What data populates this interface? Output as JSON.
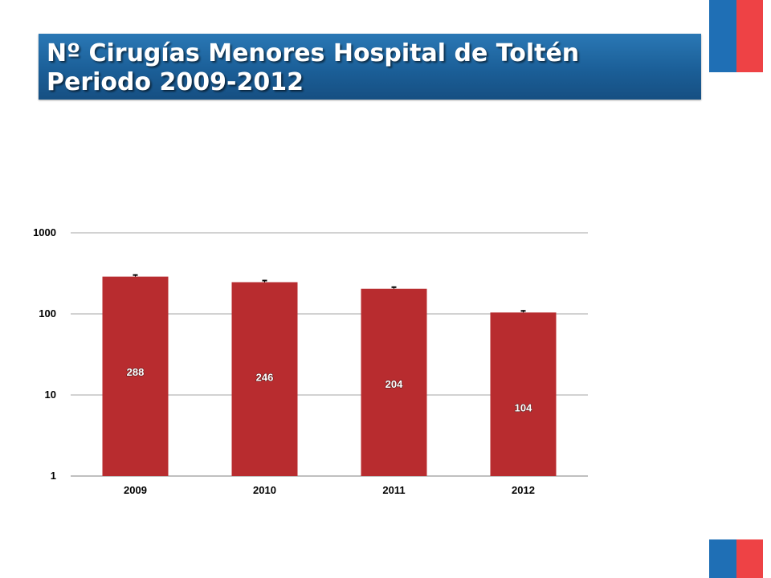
{
  "header": {
    "title_line1": "Nº Cirugías Menores Hospital de Toltén",
    "title_line2": "Periodo 2009-2012"
  },
  "colors": {
    "banner": "#1b5f98",
    "bar": "#b82c2f",
    "flag_blue": "#1f6fb5",
    "flag_red": "#ee4245",
    "grid": "#a6a6a6"
  },
  "chart_data": {
    "type": "bar",
    "categories": [
      "2009",
      "2010",
      "2011",
      "2012"
    ],
    "values": [
      288,
      246,
      204,
      104
    ],
    "data_labels": [
      "288",
      "246",
      "204",
      "104"
    ],
    "y_scale": "log",
    "ylim": [
      1,
      1000
    ],
    "y_ticks": [
      1,
      10,
      100,
      1000
    ],
    "y_tick_labels": [
      "1",
      "10",
      "100",
      "1000"
    ],
    "grid": true,
    "legend": "none",
    "title": "",
    "xlabel": "",
    "ylabel": ""
  }
}
